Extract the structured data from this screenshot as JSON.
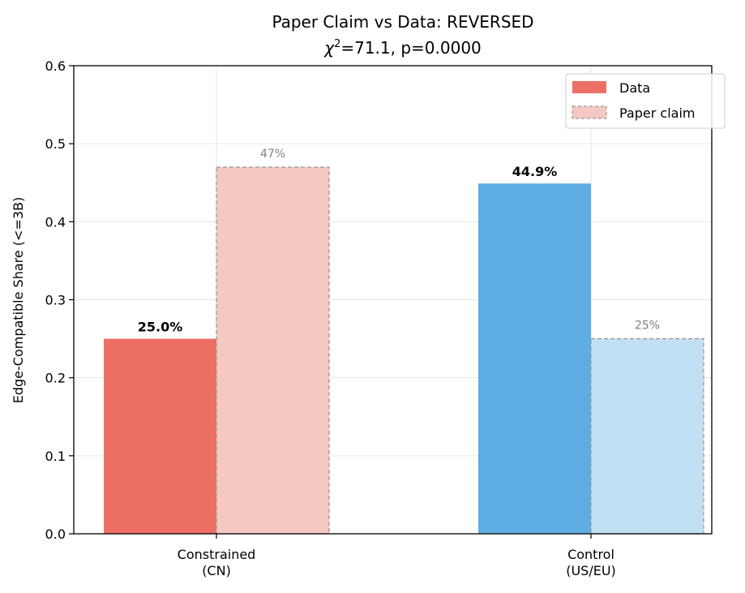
{
  "chart_data": {
    "type": "bar",
    "title": "Paper Claim vs Data: REVERSED",
    "subtitle": "χ²=71.1, p=0.0000",
    "subtitle_parts": {
      "chi": "χ",
      "sup": "2",
      "rest": "=71.1, p=0.0000"
    },
    "xlabel": "",
    "ylabel": "Edge-Compatible Share (<=3B)",
    "ylim": [
      0,
      0.6
    ],
    "yticks": [
      "0.0",
      "0.1",
      "0.2",
      "0.3",
      "0.4",
      "0.5",
      "0.6"
    ],
    "grid": true,
    "legend_position": "upper right",
    "categories": [
      "Constrained\n(CN)",
      "Control\n(US/EU)"
    ],
    "category_lines": [
      [
        "Constrained",
        "(CN)"
      ],
      [
        "Control",
        "(US/EU)"
      ]
    ],
    "series": [
      {
        "name": "Data",
        "values": [
          0.25,
          0.449
        ],
        "labels": [
          "25.0%",
          "44.9%"
        ],
        "colors": [
          "#ec7063",
          "#5dade2"
        ],
        "style": "solid"
      },
      {
        "name": "Paper claim",
        "values": [
          0.47,
          0.25
        ],
        "labels": [
          "47%",
          "25%"
        ],
        "colors": [
          "#f5c8c2",
          "#c2e0f4"
        ],
        "style": "dashed"
      }
    ],
    "legend": [
      {
        "label": "Data",
        "color": "#ec7063",
        "style": "solid"
      },
      {
        "label": "Paper claim",
        "color": "#f5c8c2",
        "style": "dashed"
      }
    ]
  }
}
